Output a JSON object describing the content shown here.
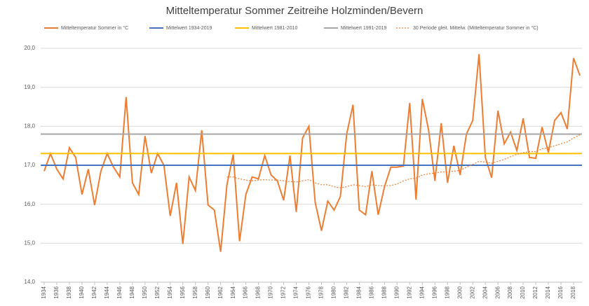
{
  "chart_data": {
    "type": "line",
    "title": "Mitteltemperatur Sommer Zeitreihe Holzminden/Bevern",
    "x": [
      1934,
      1935,
      1936,
      1937,
      1938,
      1939,
      1940,
      1941,
      1942,
      1943,
      1944,
      1945,
      1946,
      1947,
      1948,
      1949,
      1950,
      1951,
      1952,
      1953,
      1954,
      1955,
      1956,
      1957,
      1958,
      1959,
      1960,
      1961,
      1962,
      1963,
      1964,
      1965,
      1966,
      1967,
      1968,
      1969,
      1970,
      1971,
      1972,
      1973,
      1974,
      1975,
      1976,
      1977,
      1978,
      1979,
      1980,
      1981,
      1982,
      1983,
      1984,
      1985,
      1986,
      1987,
      1988,
      1989,
      1990,
      1991,
      1992,
      1993,
      1994,
      1995,
      1996,
      1997,
      1998,
      1999,
      2000,
      2001,
      2002,
      2003,
      2004,
      2005,
      2006,
      2007,
      2008,
      2009,
      2010,
      2011,
      2012,
      2013,
      2014,
      2015,
      2016,
      2017,
      2018,
      2019
    ],
    "xlim": [
      1934,
      2019
    ],
    "xticks": [
      1934,
      1936,
      1938,
      1940,
      1942,
      1944,
      1946,
      1948,
      1950,
      1952,
      1954,
      1956,
      1958,
      1960,
      1962,
      1964,
      1966,
      1968,
      1970,
      1972,
      1974,
      1976,
      1978,
      1980,
      1982,
      1984,
      1986,
      1988,
      1990,
      1992,
      1994,
      1996,
      1998,
      2000,
      2002,
      2004,
      2006,
      2008,
      2010,
      2012,
      2014,
      2016,
      2018
    ],
    "ylim": [
      14,
      20
    ],
    "yticks": [
      {
        "value": 14,
        "label": "14,0"
      },
      {
        "value": 15,
        "label": "15,0"
      },
      {
        "value": 16,
        "label": "16,0"
      },
      {
        "value": 17,
        "label": "17,0"
      },
      {
        "value": 18,
        "label": "18,0"
      },
      {
        "value": 19,
        "label": "19,0"
      },
      {
        "value": 20,
        "label": "20,0"
      }
    ],
    "grid": true,
    "series": [
      {
        "name": "Mitteltemperatur Sommer in °C",
        "color": "#ed7d31",
        "style": "solid",
        "values": [
          16.85,
          17.3,
          16.9,
          16.65,
          17.45,
          17.2,
          16.25,
          16.9,
          15.98,
          16.85,
          17.3,
          16.95,
          16.7,
          18.75,
          16.55,
          16.25,
          17.75,
          16.8,
          17.3,
          17.0,
          15.7,
          16.55,
          14.98,
          16.7,
          16.35,
          17.9,
          15.98,
          15.85,
          14.78,
          16.5,
          17.28,
          15.05,
          16.25,
          16.7,
          16.65,
          17.25,
          16.75,
          16.6,
          16.1,
          17.25,
          15.8,
          17.7,
          18.0,
          16.05,
          15.32,
          16.08,
          15.85,
          16.2,
          17.8,
          18.55,
          15.85,
          15.73,
          16.85,
          15.73,
          16.45,
          16.95,
          16.95,
          16.98,
          18.6,
          16.12,
          18.7,
          17.9,
          16.6,
          18.08,
          16.55,
          17.5,
          16.75,
          17.8,
          18.15,
          19.85,
          17.2,
          16.68,
          18.4,
          17.55,
          17.85,
          17.38,
          18.2,
          17.2,
          17.18,
          17.98,
          17.33,
          18.15,
          18.35,
          17.93,
          19.75,
          19.3
        ]
      },
      {
        "name": "Mittelwert 1934-2019",
        "color": "#4472c4",
        "style": "solid",
        "value": 17.0
      },
      {
        "name": "Mittelwert 1981-2010",
        "color": "#ffc000",
        "style": "solid",
        "value": 17.3
      },
      {
        "name": "Mittelwert 1991-2019",
        "color": "#a5a5a5",
        "style": "solid",
        "value": 17.8
      },
      {
        "name": "30 Periode gleit. Mittelw. (Mitteltemperatur Sommer in °C)",
        "color": "#ed7d31",
        "style": "dotted",
        "values": [
          null,
          null,
          null,
          null,
          null,
          null,
          null,
          null,
          null,
          null,
          null,
          null,
          null,
          null,
          null,
          null,
          null,
          null,
          null,
          null,
          null,
          null,
          null,
          null,
          null,
          null,
          null,
          null,
          null,
          16.7,
          16.7,
          16.65,
          16.62,
          16.6,
          16.62,
          16.63,
          16.62,
          16.62,
          16.6,
          16.58,
          16.57,
          16.6,
          16.63,
          16.55,
          16.5,
          16.5,
          16.45,
          16.42,
          16.45,
          16.5,
          16.48,
          16.45,
          16.5,
          16.48,
          16.47,
          16.48,
          16.52,
          16.6,
          16.65,
          16.67,
          16.75,
          16.78,
          16.8,
          16.83,
          16.83,
          16.85,
          16.87,
          16.95,
          17.02,
          17.1,
          17.08,
          17.05,
          17.1,
          17.15,
          17.22,
          17.28,
          17.32,
          17.35,
          17.35,
          17.42,
          17.45,
          17.5,
          17.55,
          17.6,
          17.7,
          17.78
        ]
      }
    ]
  }
}
